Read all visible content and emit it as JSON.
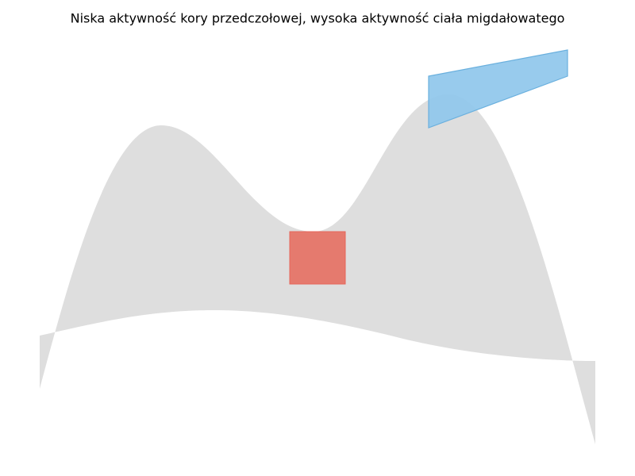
{
  "title": "Niska aktywność kory przedczołowej, wysoka aktywność ciała migdałowatego"
}
